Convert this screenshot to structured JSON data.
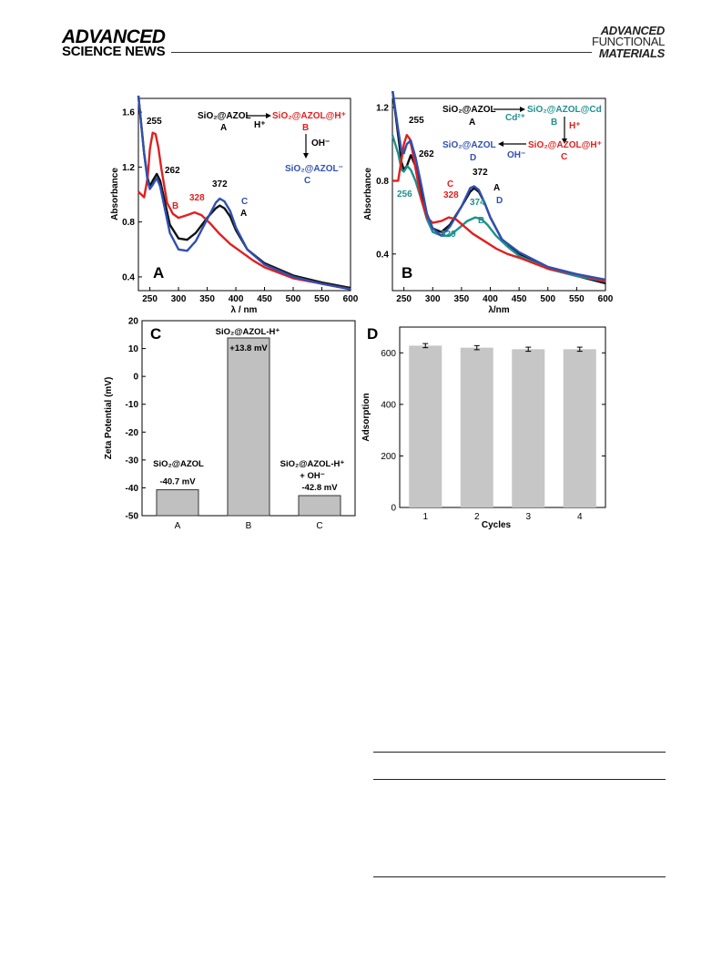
{
  "header": {
    "journal_left_1": "ADVANCED",
    "journal_left_2": "SCIENCE NEWS",
    "journal_right_1": "ADVANCED",
    "journal_right_2": "FUNCTIONAL",
    "journal_right_3": "MATERIALS"
  },
  "chart_data": [
    {
      "panel": "A",
      "type": "line",
      "xlabel": "λ / nm",
      "ylabel": "Absorbance",
      "xlim": [
        230,
        600
      ],
      "ylim": [
        0.3,
        1.7
      ],
      "xticks": [
        "250",
        "300",
        "350",
        "400",
        "450",
        "500",
        "550",
        "600"
      ],
      "yticks": [
        "0.4",
        "0.8",
        "1.2",
        "1.6"
      ],
      "series": [
        {
          "label": "A",
          "color": "#111111",
          "x": [
            230,
            240,
            246,
            250,
            255,
            262,
            268,
            275,
            285,
            300,
            315,
            330,
            350,
            365,
            372,
            380,
            390,
            400,
            420,
            450,
            500,
            550,
            600
          ],
          "y": [
            1.72,
            1.3,
            1.12,
            1.06,
            1.1,
            1.15,
            1.1,
            0.97,
            0.78,
            0.68,
            0.67,
            0.72,
            0.83,
            0.9,
            0.92,
            0.9,
            0.84,
            0.74,
            0.6,
            0.5,
            0.41,
            0.36,
            0.32
          ]
        },
        {
          "label": "B",
          "color": "#e02020",
          "x": [
            230,
            240,
            246,
            250,
            255,
            260,
            265,
            270,
            280,
            290,
            300,
            315,
            328,
            340,
            355,
            370,
            390,
            410,
            430,
            450,
            500,
            550,
            600
          ],
          "y": [
            1.02,
            0.98,
            1.12,
            1.33,
            1.45,
            1.44,
            1.34,
            1.19,
            0.94,
            0.86,
            0.83,
            0.85,
            0.87,
            0.85,
            0.79,
            0.72,
            0.64,
            0.58,
            0.52,
            0.47,
            0.39,
            0.35,
            0.31
          ]
        },
        {
          "label": "C",
          "color": "#3050b0",
          "x": [
            230,
            240,
            246,
            250,
            255,
            262,
            268,
            275,
            285,
            300,
            315,
            330,
            350,
            365,
            372,
            380,
            390,
            400,
            420,
            450,
            500,
            550,
            600
          ],
          "y": [
            1.72,
            1.3,
            1.1,
            1.04,
            1.07,
            1.12,
            1.06,
            0.92,
            0.72,
            0.6,
            0.59,
            0.66,
            0.82,
            0.94,
            0.97,
            0.95,
            0.88,
            0.76,
            0.6,
            0.49,
            0.4,
            0.35,
            0.31
          ]
        }
      ],
      "annotations": [
        "255",
        "262",
        "328",
        "372",
        "B",
        "C",
        "A"
      ]
    },
    {
      "panel": "B",
      "type": "line",
      "xlabel": "λ/nm",
      "ylabel": "Absorbance",
      "xlim": [
        230,
        600
      ],
      "ylim": [
        0.2,
        1.25
      ],
      "xticks": [
        "250",
        "300",
        "350",
        "400",
        "450",
        "500",
        "550",
        "600"
      ],
      "yticks": [
        "0.4",
        "0.8",
        "1.2"
      ],
      "series": [
        {
          "label": "A",
          "color": "#111111",
          "x": [
            230,
            240,
            246,
            250,
            255,
            262,
            270,
            280,
            290,
            300,
            315,
            330,
            350,
            365,
            372,
            380,
            390,
            400,
            420,
            450,
            500,
            550,
            600
          ],
          "y": [
            1.3,
            1.05,
            0.9,
            0.86,
            0.88,
            0.94,
            0.88,
            0.74,
            0.6,
            0.54,
            0.52,
            0.56,
            0.66,
            0.74,
            0.76,
            0.74,
            0.68,
            0.6,
            0.48,
            0.4,
            0.32,
            0.28,
            0.24
          ]
        },
        {
          "label": "B",
          "color": "#1f9090",
          "x": [
            230,
            240,
            246,
            250,
            256,
            262,
            270,
            280,
            290,
            300,
            315,
            329,
            345,
            360,
            374,
            385,
            395,
            410,
            430,
            450,
            500,
            550,
            600
          ],
          "y": [
            1.05,
            0.95,
            0.86,
            0.85,
            0.88,
            0.86,
            0.8,
            0.7,
            0.59,
            0.52,
            0.5,
            0.5,
            0.54,
            0.58,
            0.6,
            0.59,
            0.56,
            0.5,
            0.44,
            0.39,
            0.32,
            0.28,
            0.25
          ]
        },
        {
          "label": "C",
          "color": "#e02020",
          "x": [
            230,
            240,
            246,
            250,
            255,
            260,
            265,
            270,
            280,
            290,
            300,
            315,
            328,
            340,
            355,
            370,
            390,
            410,
            430,
            450,
            500,
            550,
            600
          ],
          "y": [
            0.8,
            0.8,
            0.92,
            1.0,
            1.05,
            1.03,
            0.96,
            0.87,
            0.7,
            0.6,
            0.57,
            0.58,
            0.6,
            0.59,
            0.55,
            0.51,
            0.47,
            0.43,
            0.4,
            0.38,
            0.32,
            0.29,
            0.25
          ]
        },
        {
          "label": "D",
          "color": "#3050b0",
          "x": [
            230,
            240,
            246,
            250,
            255,
            262,
            270,
            280,
            290,
            300,
            315,
            330,
            350,
            365,
            372,
            380,
            390,
            400,
            420,
            450,
            500,
            550,
            600
          ],
          "y": [
            1.3,
            1.08,
            0.96,
            0.95,
            1.0,
            1.02,
            0.93,
            0.78,
            0.62,
            0.54,
            0.5,
            0.55,
            0.66,
            0.76,
            0.77,
            0.75,
            0.68,
            0.6,
            0.48,
            0.41,
            0.33,
            0.29,
            0.26
          ]
        }
      ],
      "annotations": [
        "255",
        "262",
        "256",
        "328",
        "329",
        "372",
        "374",
        "A",
        "B",
        "C",
        "D"
      ]
    },
    {
      "panel": "C",
      "type": "bar",
      "ylabel": "Zeta Potential (mV)",
      "ylim": [
        -50,
        20
      ],
      "yticks": [
        "20",
        "10",
        "0",
        "-10",
        "-20",
        "-30",
        "-40",
        "-50"
      ],
      "categories": [
        "A",
        "B",
        "C"
      ],
      "values": [
        -40.7,
        13.8,
        -42.8
      ],
      "bar_labels": [
        "-40.7 mV",
        "+13.8 mV",
        "-42.8 mV"
      ]
    },
    {
      "panel": "D",
      "type": "bar",
      "xlabel": "Cycles",
      "ylabel": "Adsorption",
      "ylim": [
        0,
        700
      ],
      "yticks": [
        "0",
        "200",
        "400",
        "600"
      ],
      "categories": [
        "1",
        "2",
        "3",
        "4"
      ],
      "values": [
        628,
        620,
        614,
        614
      ],
      "errors": [
        8,
        8,
        8,
        8
      ]
    }
  ],
  "panelA": {
    "letter": "A",
    "scheme_src": "SiO₂@AZOL",
    "scheme_src_id": "A",
    "scheme_arrow_label": "H⁺",
    "scheme_dst": "SiO₂@AZOL@H⁺",
    "scheme_dst_id": "B",
    "scheme_down_label": "OH⁻",
    "scheme_end": "SiO₂@AZOL⁻",
    "scheme_end_id": "C",
    "pk255": "255",
    "pk262": "262",
    "pk328": "328",
    "pk372": "372",
    "lblB": "B",
    "lblC": "C",
    "lblA": "A"
  },
  "panelB": {
    "letter": "B",
    "s_a": "SiO₂@AZOL",
    "s_a_id": "A",
    "s_arrow1": "Cd²⁺",
    "s_b": "SiO₂@AZOL@Cd",
    "s_b_id": "B",
    "s_down": "H⁺",
    "s_c": "SiO₂@AZOL@H⁺",
    "s_c_id": "C",
    "s_arrow2": "OH⁻",
    "s_d": "SiO₂@AZOL",
    "s_d_id": "D",
    "pk255": "255",
    "pk262": "262",
    "pk256": "256",
    "pk328": "328",
    "pk329": "329",
    "pk372": "372",
    "pk374": "374",
    "lblC": "C",
    "lblA": "A",
    "lblD": "D",
    "lblB": "B"
  },
  "panelC": {
    "letter": "C",
    "barA_name": "SiO₂@AZOL",
    "barB_name": "SiO₂@AZOL-H⁺",
    "barC_name1": "SiO₂@AZOL-H⁺",
    "barC_name2": "+ OH⁻"
  },
  "panelD": {
    "letter": "D"
  }
}
